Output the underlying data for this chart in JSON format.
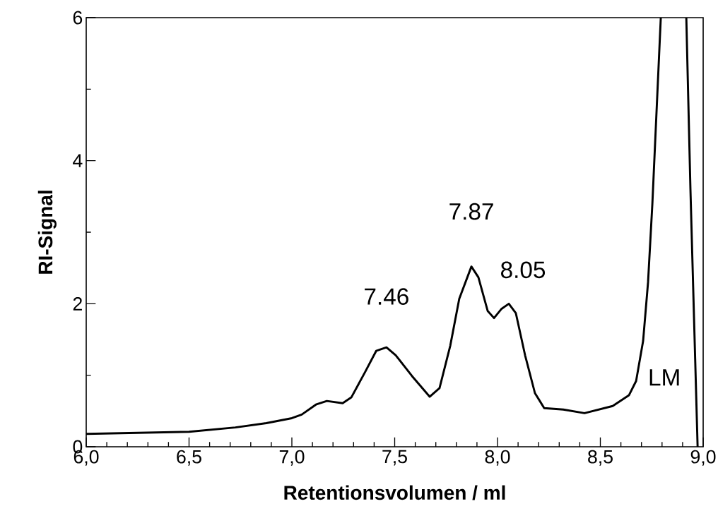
{
  "chart_data": {
    "type": "line",
    "xlabel": "Retentionsvolumen / ml",
    "ylabel": "RI-Signal",
    "x": [
      6.0,
      6.5,
      6.725,
      6.876,
      7.0,
      7.048,
      7.117,
      7.17,
      7.247,
      7.289,
      7.357,
      7.41,
      7.46,
      7.505,
      7.584,
      7.67,
      7.718,
      7.77,
      7.814,
      7.873,
      7.907,
      7.952,
      7.983,
      8.02,
      8.055,
      8.089,
      8.134,
      8.182,
      8.227,
      8.32,
      8.423,
      8.56,
      8.639,
      8.674,
      8.708,
      8.732,
      8.753,
      8.794,
      8.856,
      8.918,
      8.938,
      8.973
    ],
    "series": [
      {
        "color": "#000000",
        "values": [
          0.18,
          0.21,
          0.27,
          0.33,
          0.4,
          0.45,
          0.59,
          0.64,
          0.61,
          0.69,
          1.05,
          1.34,
          1.39,
          1.28,
          0.99,
          0.7,
          0.82,
          1.41,
          2.07,
          2.52,
          2.37,
          1.9,
          1.8,
          1.93,
          2.0,
          1.87,
          1.28,
          0.75,
          0.54,
          0.52,
          0.47,
          0.57,
          0.72,
          0.92,
          1.48,
          2.3,
          3.4,
          6.0,
          null,
          6.0,
          3.61,
          0.0
        ]
      }
    ],
    "xlim": [
      6.0,
      9.0
    ],
    "xticks": [
      {
        "value": 6.0,
        "label": "6,0"
      },
      {
        "value": 6.5,
        "label": "6,5"
      },
      {
        "value": 7.0,
        "label": "7,0"
      },
      {
        "value": 7.5,
        "label": "7,5"
      },
      {
        "value": 8.0,
        "label": "8,0"
      },
      {
        "value": 8.5,
        "label": "8,5"
      },
      {
        "value": 9.0,
        "label": "9,0"
      }
    ],
    "ylim": [
      0,
      6
    ],
    "yticks": [
      0,
      2,
      4,
      6
    ],
    "grid": false,
    "marker": "none",
    "line_style": "solid",
    "annotations": [
      {
        "text": "7.46",
        "x": 7.46,
        "y": 1.39
      },
      {
        "text": "7.87",
        "x": 7.873,
        "y": 2.52
      },
      {
        "text": "8.05",
        "x": 8.055,
        "y": 2.0
      },
      {
        "text": "LM",
        "x": 8.674,
        "y": 0.92
      }
    ]
  }
}
